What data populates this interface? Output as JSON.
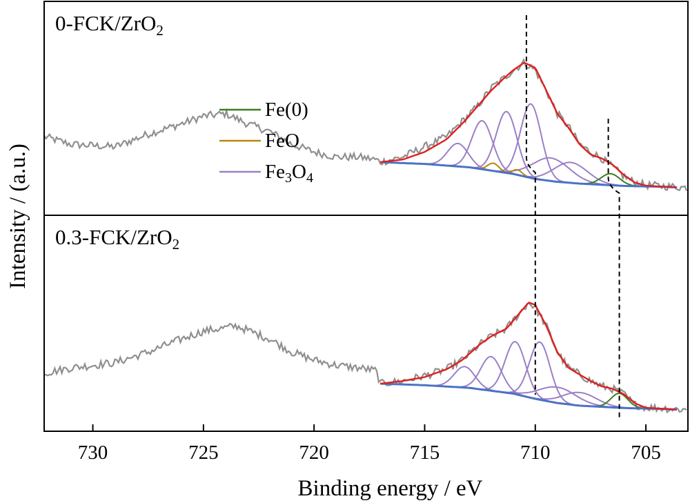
{
  "chart_data": {
    "type": "line",
    "xlabel": "Binding energy / eV",
    "ylabel": "Intensity / (a.u.)",
    "xlim": [
      732.2,
      703.1
    ],
    "xticks": [
      730,
      725,
      720,
      715,
      710,
      705
    ],
    "grid": false,
    "legend_position": "upper-center of top panel",
    "legend": [
      {
        "label_main": "Fe(0)",
        "sub1": "",
        "mid": "",
        "sub2": "",
        "color": "#3a7d1e"
      },
      {
        "label_main": "FeO",
        "sub1": "",
        "mid": "",
        "sub2": "",
        "color": "#b8860b"
      },
      {
        "label_main": "Fe",
        "sub1": "3",
        "mid": "O",
        "sub2": "4",
        "color": "#9b7fc7"
      }
    ],
    "panels": [
      {
        "label_main": "0-FCK/ZrO",
        "label_sub": "2",
        "raw": {
          "color": "#8f8f8f",
          "noise": 3.0,
          "points": [
            [
              732.2,
              20
            ],
            [
              731,
              17
            ],
            [
              729,
              16
            ],
            [
              727.5,
              21
            ],
            [
              726,
              25
            ],
            [
              725,
              28
            ],
            [
              724,
              29
            ],
            [
              723,
              25
            ],
            [
              722,
              22
            ],
            [
              721,
              17
            ],
            [
              720,
              14
            ],
            [
              719,
              12
            ],
            [
              718,
              12
            ],
            [
              717.2,
              11
            ],
            [
              717,
              10
            ],
            [
              716,
              12
            ],
            [
              715,
              16
            ],
            [
              714,
              20
            ],
            [
              713.3,
              26
            ],
            [
              712.6,
              32
            ],
            [
              712,
              39
            ],
            [
              711.4,
              43
            ],
            [
              711,
              46
            ],
            [
              710.5,
              49
            ],
            [
              710,
              46
            ],
            [
              709.5,
              38
            ],
            [
              709,
              29
            ],
            [
              708.5,
              24
            ],
            [
              708,
              17
            ],
            [
              707.5,
              14
            ],
            [
              707,
              11.5
            ],
            [
              706.5,
              8
            ],
            [
              706,
              4.5
            ],
            [
              705.5,
              2
            ],
            [
              705,
              1
            ],
            [
              704,
              0.5
            ],
            [
              703.1,
              0
            ]
          ]
        },
        "background": {
          "color": "#4a72c4",
          "points": [
            [
              717.0,
              10
            ],
            [
              715,
              9.3
            ],
            [
              713,
              8
            ],
            [
              711,
              5.4
            ],
            [
              710,
              3.4
            ],
            [
              709,
              2.3
            ],
            [
              708,
              1.6
            ],
            [
              706,
              0.7
            ],
            [
              704,
              0.3
            ],
            [
              703.6,
              0.1
            ]
          ]
        },
        "envelope": {
          "color": "#e02020",
          "points": [
            [
              717.0,
              10
            ],
            [
              716,
              11
            ],
            [
              715,
              14
            ],
            [
              714,
              19
            ],
            [
              713.2,
              26
            ],
            [
              712.6,
              32
            ],
            [
              712,
              38
            ],
            [
              711.4,
              43
            ],
            [
              711,
              46
            ],
            [
              710.5,
              49
            ],
            [
              710,
              47
            ],
            [
              709.5,
              38
            ],
            [
              709,
              29
            ],
            [
              708.5,
              23.5
            ],
            [
              708,
              17
            ],
            [
              707.5,
              13
            ],
            [
              707,
              11.5
            ],
            [
              706.5,
              9
            ],
            [
              706,
              5
            ],
            [
              705.5,
              2
            ],
            [
              705,
              0.8
            ],
            [
              704,
              0.3
            ],
            [
              703.6,
              0.1
            ]
          ]
        },
        "peaks": [
          {
            "component": "Fe3O4",
            "center": 713.5,
            "height": 9,
            "fwhm": 1.1
          },
          {
            "component": "Fe3O4",
            "center": 712.4,
            "height": 19,
            "fwhm": 1.1
          },
          {
            "component": "Fe3O4",
            "center": 711.3,
            "height": 24,
            "fwhm": 1.1
          },
          {
            "component": "Fe3O4",
            "center": 710.2,
            "height": 29,
            "fwhm": 1.1
          },
          {
            "component": "Fe3O4",
            "center": 709.3,
            "height": 9,
            "fwhm": 2.0
          },
          {
            "component": "Fe3O4",
            "center": 708.4,
            "height": 8,
            "fwhm": 1.8
          },
          {
            "component": "FeO",
            "center": 711.9,
            "height": 3,
            "fwhm": 0.6
          },
          {
            "component": "FeO",
            "center": 710.8,
            "height": 2,
            "fwhm": 0.5
          },
          {
            "component": "Fe(0)",
            "center": 706.6,
            "height": 4.5,
            "fwhm": 1.0
          }
        ],
        "dashed_lines_eV": [
          710.4,
          706.7
        ]
      },
      {
        "label_main": "0.3-FCK/ZrO",
        "label_sub": "2",
        "raw": {
          "color": "#8f8f8f",
          "noise": 3.0,
          "points": [
            [
              732.2,
              14
            ],
            [
              731,
              16
            ],
            [
              729,
              18
            ],
            [
              727.5,
              22
            ],
            [
              726,
              27
            ],
            [
              725,
              30
            ],
            [
              723.5,
              32
            ],
            [
              722,
              27
            ],
            [
              721,
              22
            ],
            [
              720,
              19
            ],
            [
              719,
              17
            ],
            [
              718,
              16
            ],
            [
              717.2,
              15
            ],
            [
              717,
              10
            ],
            [
              716,
              11
            ],
            [
              715,
              13
            ],
            [
              714,
              15.5
            ],
            [
              713.3,
              19
            ],
            [
              712.5,
              25
            ],
            [
              712,
              28
            ],
            [
              711.3,
              31
            ],
            [
              710.8,
              36
            ],
            [
              710.3,
              41
            ],
            [
              710,
              39
            ],
            [
              709.5,
              32
            ],
            [
              709,
              22
            ],
            [
              708.5,
              16
            ],
            [
              708,
              13.5
            ],
            [
              707.5,
              11
            ],
            [
              707,
              9
            ],
            [
              706.5,
              8
            ],
            [
              706,
              6
            ],
            [
              705.5,
              2
            ],
            [
              705,
              1
            ],
            [
              704,
              0.5
            ],
            [
              703.1,
              0
            ]
          ]
        },
        "background": {
          "color": "#4a72c4",
          "points": [
            [
              717.0,
              10
            ],
            [
              715,
              9.4
            ],
            [
              713,
              8.4
            ],
            [
              711,
              6.2
            ],
            [
              710,
              4.2
            ],
            [
              709,
              2.6
            ],
            [
              708,
              1.6
            ],
            [
              706,
              0.7
            ],
            [
              704,
              0.3
            ],
            [
              703.6,
              0.1
            ]
          ]
        },
        "envelope": {
          "color": "#e02020",
          "points": [
            [
              717.0,
              10
            ],
            [
              716,
              11
            ],
            [
              715,
              12.5
            ],
            [
              714,
              15.5
            ],
            [
              713.3,
              19
            ],
            [
              712.5,
              25
            ],
            [
              712,
              28
            ],
            [
              711.3,
              31
            ],
            [
              710.8,
              36
            ],
            [
              710.3,
              41
            ],
            [
              710,
              40
            ],
            [
              709.5,
              32
            ],
            [
              709,
              22
            ],
            [
              708.5,
              16
            ],
            [
              708,
              13.5
            ],
            [
              707.5,
              11
            ],
            [
              707,
              9
            ],
            [
              706.5,
              8
            ],
            [
              706,
              6
            ],
            [
              705.5,
              2.5
            ],
            [
              705,
              0.8
            ],
            [
              704,
              0.3
            ],
            [
              703.6,
              0.1
            ]
          ]
        },
        "peaks": [
          {
            "component": "Fe3O4",
            "center": 713.2,
            "height": 8,
            "fwhm": 1.1
          },
          {
            "component": "Fe3O4",
            "center": 712.0,
            "height": 13,
            "fwhm": 1.1
          },
          {
            "component": "Fe3O4",
            "center": 710.9,
            "height": 20,
            "fwhm": 1.1
          },
          {
            "component": "Fe3O4",
            "center": 709.8,
            "height": 22,
            "fwhm": 1.1
          },
          {
            "component": "Fe3O4",
            "center": 709.0,
            "height": 6,
            "fwhm": 2.0
          },
          {
            "component": "Fe3O4",
            "center": 708.0,
            "height": 5,
            "fwhm": 1.8
          },
          {
            "component": "Fe(0)",
            "center": 706.2,
            "height": 5.5,
            "fwhm": 0.9
          }
        ],
        "dashed_lines_eV": [
          710.0,
          706.2
        ]
      }
    ]
  }
}
